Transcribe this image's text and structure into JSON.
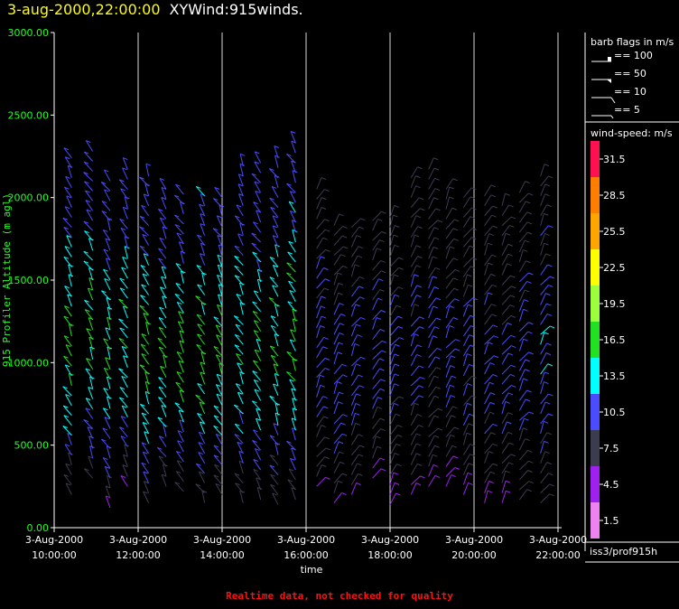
{
  "header": {
    "datetime": "3-aug-2000,22:00:00",
    "title": "XYWind:915winds."
  },
  "footer_warning": "Realtime data, not checked for quality",
  "colors": {
    "background": "#000000",
    "grid": "#ffffff",
    "ylabel": "#22ff22",
    "header_date": "#ffff00",
    "warning": "#ff1010"
  },
  "chart_data": {
    "type": "scatter",
    "marks": "wind-barbs",
    "ylabel": "915 Profiler Altitude (m agl)",
    "xlabel": "time",
    "ylim": [
      0,
      3000
    ],
    "yticks": [
      "0.00",
      "500.00",
      "1000.00",
      "1500.00",
      "2000.00",
      "2500.00",
      "3000.00"
    ],
    "xticks": [
      {
        "date": "3-Aug-2000",
        "time": "10:00:00"
      },
      {
        "date": "3-Aug-2000",
        "time": "12:00:00"
      },
      {
        "date": "3-Aug-2000",
        "time": "14:00:00"
      },
      {
        "date": "3-Aug-2000",
        "time": "16:00:00"
      },
      {
        "date": "3-Aug-2000",
        "time": "18:00:00"
      },
      {
        "date": "3-Aug-2000",
        "time": "20:00:00"
      },
      {
        "date": "3-Aug-2000",
        "time": "22:00:00"
      }
    ],
    "xrange_hours": [
      10,
      22
    ],
    "grid_vertical": true,
    "barb_legend": {
      "title": "barb flags in m/s",
      "items": [
        "== 100",
        "== 50",
        "== 10",
        "== 5"
      ]
    },
    "colorbar": {
      "title": "wind-speed: m/s",
      "labels": [
        "31.5",
        "28.5",
        "25.5",
        "22.5",
        "19.5",
        "16.5",
        "13.5",
        "10.5",
        "7.5",
        "4.5",
        "1.5"
      ],
      "colors": [
        "#ff1050",
        "#ff7d00",
        "#ffa500",
        "#ffff00",
        "#9cff3c",
        "#22e022",
        "#00ffff",
        "#4b4bff",
        "#3c3c50",
        "#a020f0",
        "#ee82ee"
      ]
    },
    "source_label": "iss3/prof915h",
    "profiles": [
      {
        "time": "10:25",
        "top_m": 2280,
        "bottom_m": 200,
        "max_speed": 14
      },
      {
        "time": "10:55",
        "top_m": 2280,
        "bottom_m": 300,
        "max_speed": 14
      },
      {
        "time": "11:20",
        "top_m": 2100,
        "bottom_m": 120,
        "max_speed": 13
      },
      {
        "time": "11:45",
        "top_m": 2200,
        "bottom_m": 250,
        "max_speed": 13
      },
      {
        "time": "12:15",
        "top_m": 2150,
        "bottom_m": 150,
        "max_speed": 14
      },
      {
        "time": "12:40",
        "top_m": 2050,
        "bottom_m": 250,
        "max_speed": 14
      },
      {
        "time": "13:05",
        "top_m": 2050,
        "bottom_m": 220,
        "max_speed": 14
      },
      {
        "time": "13:35",
        "top_m": 2050,
        "bottom_m": 150,
        "max_speed": 14
      },
      {
        "time": "14:00",
        "top_m": 2050,
        "bottom_m": 200,
        "max_speed": 14
      },
      {
        "time": "14:30",
        "top_m": 2200,
        "bottom_m": 150,
        "max_speed": 13
      },
      {
        "time": "14:55",
        "top_m": 2250,
        "bottom_m": 170,
        "max_speed": 13
      },
      {
        "time": "15:20",
        "top_m": 2250,
        "bottom_m": 140,
        "max_speed": 13
      },
      {
        "time": "15:45",
        "top_m": 2350,
        "bottom_m": 170,
        "max_speed": 14
      },
      {
        "time": "16:15",
        "top_m": 2050,
        "bottom_m": 250,
        "max_speed": 9
      },
      {
        "time": "16:40",
        "top_m": 1850,
        "bottom_m": 150,
        "max_speed": 9
      },
      {
        "time": "17:05",
        "top_m": 1850,
        "bottom_m": 200,
        "max_speed": 9
      },
      {
        "time": "17:35",
        "top_m": 1900,
        "bottom_m": 300,
        "max_speed": 9
      },
      {
        "time": "18:00",
        "top_m": 1900,
        "bottom_m": 140,
        "max_speed": 8
      },
      {
        "time": "18:30",
        "top_m": 2150,
        "bottom_m": 200,
        "max_speed": 8
      },
      {
        "time": "18:55",
        "top_m": 2200,
        "bottom_m": 250,
        "max_speed": 8
      },
      {
        "time": "19:20",
        "top_m": 2050,
        "bottom_m": 250,
        "max_speed": 8
      },
      {
        "time": "19:45",
        "top_m": 2050,
        "bottom_m": 200,
        "max_speed": 8
      },
      {
        "time": "20:15",
        "top_m": 2050,
        "bottom_m": 150,
        "max_speed": 8
      },
      {
        "time": "20:40",
        "top_m": 1950,
        "bottom_m": 150,
        "max_speed": 8
      },
      {
        "time": "21:05",
        "top_m": 2050,
        "bottom_m": 170,
        "max_speed": 9
      },
      {
        "time": "21:35",
        "top_m": 2150,
        "bottom_m": 150,
        "max_speed": 10
      }
    ]
  }
}
